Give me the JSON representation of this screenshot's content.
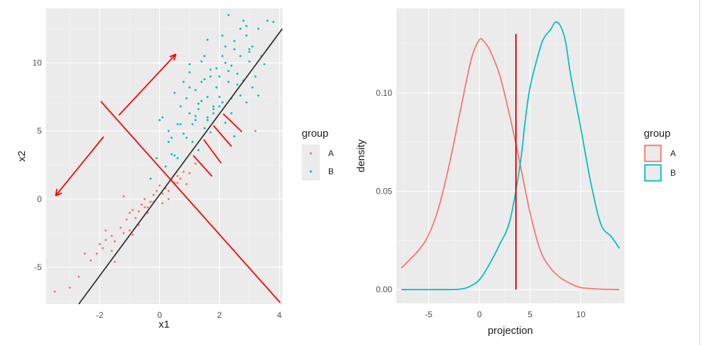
{
  "colors": {
    "A": "#f8766d",
    "B": "#00bfc4",
    "annotation": "#ff0000",
    "panel": "#ebebeb",
    "line": "#333333"
  },
  "chart_data": [
    {
      "type": "scatter",
      "xlabel": "x1",
      "ylabel": "x2",
      "xlim": [
        -3.8,
        4.1
      ],
      "ylim": [
        -7.7,
        14.0
      ],
      "xticks": [
        -2,
        0,
        2,
        4
      ],
      "yticks": [
        -5,
        0,
        5,
        10
      ],
      "xtick_labels": [
        "-2",
        "0",
        "2",
        "4"
      ],
      "ytick_labels": [
        "-5",
        "0",
        "5",
        "10"
      ],
      "grid": true,
      "legend": {
        "title": "group",
        "entries": [
          "A",
          "B"
        ],
        "placement": "right"
      },
      "regression_line": {
        "x": [
          -2.7,
          4.1
        ],
        "y": [
          -7.7,
          12.5
        ]
      },
      "series": [
        {
          "name": "A",
          "x": [
            -3.5,
            -3.0,
            -2.7,
            -2.5,
            -2.3,
            -2.1,
            -2.0,
            -1.9,
            -1.8,
            -1.6,
            -1.5,
            -1.3,
            -1.2,
            -1.1,
            -1.0,
            -1.0,
            -0.9,
            -0.8,
            -0.7,
            -0.6,
            -0.5,
            -0.5,
            -0.4,
            -0.3,
            -0.2,
            -0.1,
            0.0,
            0.1,
            0.2,
            0.3,
            0.4,
            0.5,
            0.6,
            0.7,
            0.8,
            1.0,
            1.2,
            -1.6,
            -1.8,
            -1.2,
            -0.7,
            -0.4,
            0.1,
            0.3,
            3.2,
            0.9,
            -0.2,
            -1.5,
            -0.9,
            0.6
          ],
          "y": [
            -6.8,
            -6.5,
            -5.7,
            -4.0,
            -4.5,
            -4.0,
            -3.3,
            -3.6,
            -3.0,
            -2.7,
            -3.1,
            -2.1,
            -2.5,
            -1.5,
            -2.3,
            -1.0,
            -0.8,
            -1.4,
            -1.9,
            -0.4,
            -0.6,
            0.0,
            -1.0,
            -0.2,
            0.3,
            0.6,
            1.0,
            -0.3,
            0.8,
            0.6,
            1.4,
            1.2,
            1.7,
            1.5,
            2.0,
            1.9,
            2.6,
            -3.8,
            -2.3,
            0.2,
            -0.9,
            -0.6,
            0.4,
            0.0,
            5.0,
            1.1,
            -0.2,
            -4.6,
            -2.6,
            1.2
          ]
        },
        {
          "name": "B",
          "x": [
            -0.3,
            -0.1,
            0.0,
            0.1,
            0.2,
            0.3,
            0.4,
            0.5,
            0.6,
            0.7,
            0.8,
            0.9,
            1.0,
            1.1,
            1.2,
            1.3,
            1.4,
            1.5,
            1.6,
            1.7,
            1.8,
            1.9,
            2.0,
            2.1,
            2.2,
            2.3,
            2.4,
            2.5,
            2.6,
            2.7,
            2.8,
            2.9,
            3.0,
            3.1,
            3.2,
            3.3,
            3.4,
            3.6,
            3.8,
            0.5,
            0.8,
            1.0,
            1.2,
            1.4,
            1.5,
            1.7,
            1.9,
            2.1,
            2.3,
            2.5,
            2.7,
            3.0,
            1.0,
            1.3,
            1.6,
            0.7,
            2.0,
            2.6,
            3.0,
            1.5,
            1.8,
            2.2,
            2.4,
            2.8,
            0.3,
            1.1,
            1.6,
            2.0,
            2.9,
            3.5,
            0.9,
            1.3,
            1.7,
            0.6,
            2.5,
            1.2,
            1.9,
            2.3,
            2.7,
            3.3,
            1.4,
            2.1,
            0.4,
            1.0,
            1.8,
            2.2,
            2.9,
            3.1,
            1.6,
            2.4
          ],
          "y": [
            1.5,
            3.0,
            5.8,
            6.0,
            2.4,
            4.2,
            4.5,
            3.2,
            5.5,
            6.8,
            4.8,
            7.4,
            6.3,
            4.2,
            8.0,
            6.6,
            7.2,
            8.8,
            7.5,
            9.5,
            6.3,
            8.2,
            9.0,
            7.1,
            10.0,
            8.6,
            9.8,
            11.0,
            9.2,
            10.5,
            8.7,
            12.0,
            10.1,
            11.2,
            9.0,
            12.5,
            10.5,
            13.1,
            13.0,
            7.8,
            8.6,
            9.3,
            5.8,
            10.1,
            10.5,
            9.0,
            8.2,
            12.0,
            13.5,
            11.6,
            12.5,
            11.0,
            8.2,
            7.0,
            6.0,
            5.5,
            6.8,
            8.4,
            10.8,
            5.2,
            6.6,
            11.2,
            6.3,
            13.1,
            5.0,
            5.5,
            5.8,
            7.5,
            12.7,
            9.9,
            4.5,
            3.6,
            4.9,
            3.0,
            4.6,
            6.1,
            9.6,
            9.4,
            7.6,
            7.6,
            8.6,
            10.5,
            3.3,
            9.9,
            6.8,
            5.6,
            7.1,
            8.2,
            11.7,
            7.4
          ]
        }
      ]
    },
    {
      "type": "line",
      "xlabel": "projection",
      "ylabel": "density",
      "xlim": [
        -8.2,
        14.3
      ],
      "ylim": [
        -0.007,
        0.143
      ],
      "xticks": [
        -5,
        0,
        5,
        10
      ],
      "yticks": [
        0.0,
        0.05,
        0.1
      ],
      "xtick_labels": [
        "-5",
        "0",
        "5",
        "10"
      ],
      "ytick_labels": [
        "0.00",
        "0.05",
        "0.10"
      ],
      "grid": true,
      "legend": {
        "title": "group",
        "entries": [
          "A",
          "B"
        ],
        "placement": "right"
      },
      "threshold": {
        "x": 3.6,
        "y0": 0.0,
        "y1": 0.13
      },
      "series": [
        {
          "name": "A",
          "x": [
            -7.7,
            -6,
            -5,
            -4,
            -3,
            -2,
            -1,
            -0.5,
            0,
            0.3,
            1,
            2,
            3,
            3.6,
            4,
            5,
            6,
            7,
            8,
            9,
            10,
            11,
            12,
            13.8
          ],
          "y": [
            0.011,
            0.02,
            0.028,
            0.042,
            0.063,
            0.088,
            0.113,
            0.122,
            0.127,
            0.127,
            0.122,
            0.109,
            0.088,
            0.074,
            0.064,
            0.039,
            0.02,
            0.011,
            0.006,
            0.003,
            0.001,
            0.0005,
            0.0002,
            0.0
          ]
        },
        {
          "name": "B",
          "x": [
            -7.7,
            -4,
            -2,
            -1,
            0,
            1,
            2,
            3,
            4,
            4.5,
            5,
            6,
            6.5,
            7,
            7.5,
            8,
            8.5,
            9,
            10,
            11,
            12,
            13,
            13.8
          ],
          "y": [
            0.0,
            0.0,
            0.0002,
            0.0015,
            0.005,
            0.013,
            0.023,
            0.035,
            0.063,
            0.085,
            0.103,
            0.123,
            0.129,
            0.132,
            0.136,
            0.134,
            0.126,
            0.109,
            0.082,
            0.054,
            0.033,
            0.027,
            0.021
          ]
        }
      ]
    }
  ]
}
